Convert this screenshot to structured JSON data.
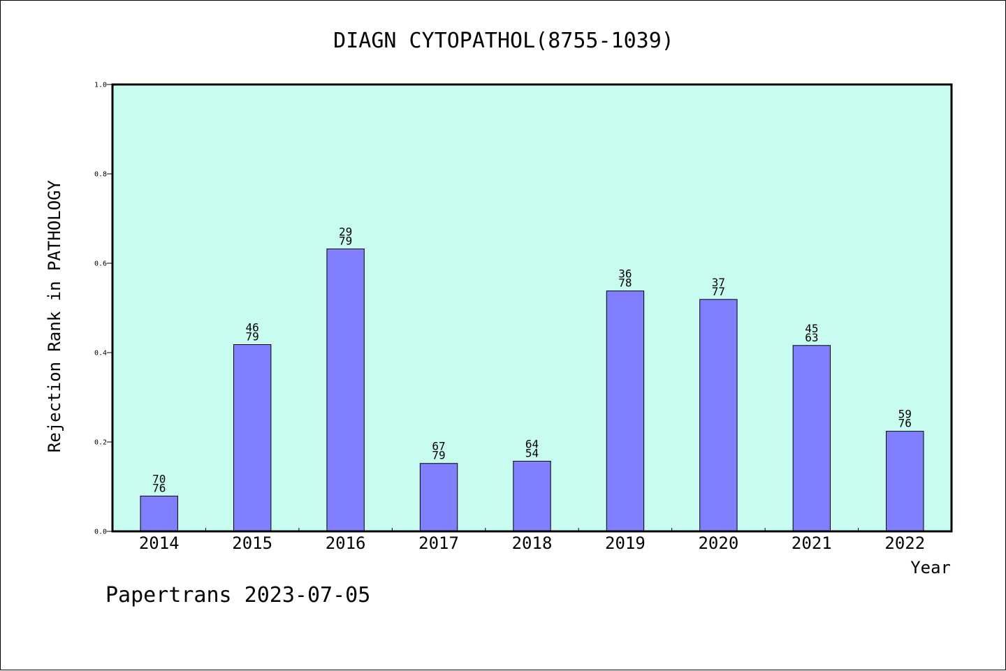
{
  "chart_data": {
    "type": "bar",
    "title": "DIAGN CYTOPATHOL(8755-1039)",
    "xlabel": "Year",
    "ylabel": "Rejection Rank in PATHOLOGY",
    "ylim": [
      0,
      1.0
    ],
    "yticks": [
      "0.0",
      "0.2",
      "0.4",
      "0.6",
      "0.8",
      "1.0"
    ],
    "grid": false,
    "categories": [
      "2014",
      "2015",
      "2016",
      "2017",
      "2018",
      "2019",
      "2020",
      "2021",
      "2022"
    ],
    "values": [
      0.079,
      0.418,
      0.632,
      0.152,
      0.157,
      0.538,
      0.519,
      0.416,
      0.224
    ],
    "labels_top": [
      "70",
      "46",
      "29",
      "67",
      "64",
      "36",
      "37",
      "45",
      "59"
    ],
    "labels_bottom": [
      "76",
      "79",
      "79",
      "79",
      "54",
      "78",
      "77",
      "63",
      "76"
    ],
    "colors": {
      "plot_background": "#c8fcf0",
      "bar_fill": "#8080ff",
      "bar_stroke": "#000000"
    }
  },
  "footer": {
    "text": "Papertrans 2023-07-05"
  }
}
